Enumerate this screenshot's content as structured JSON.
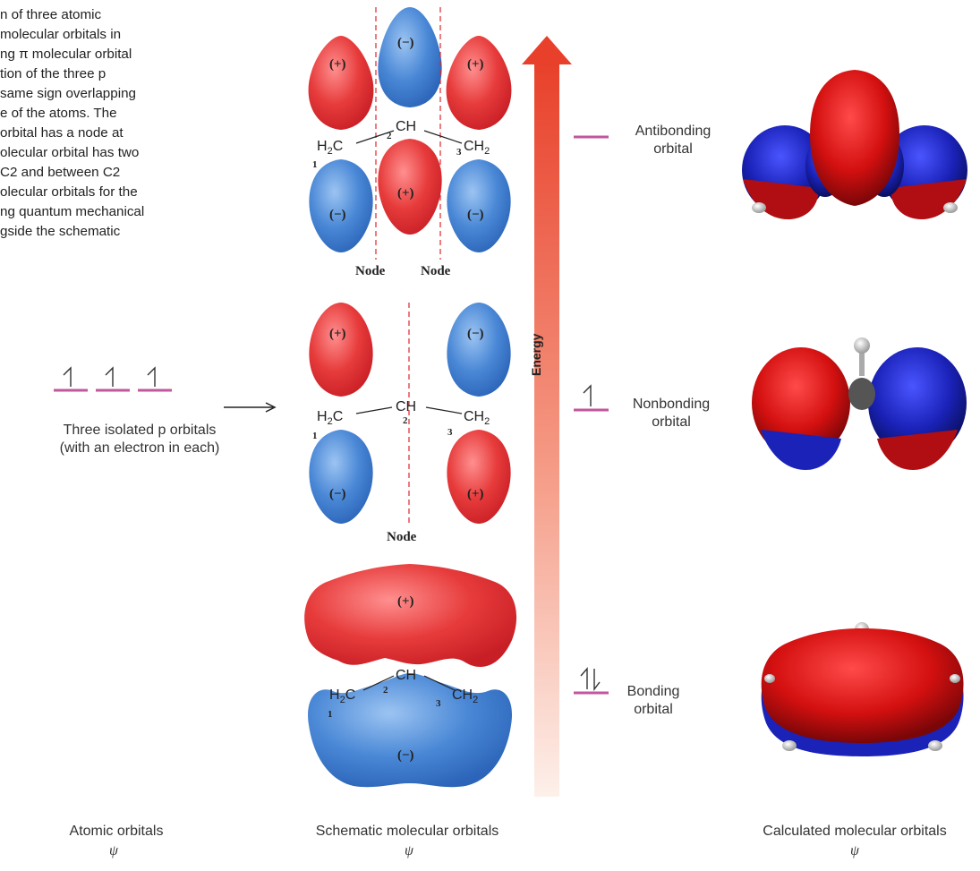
{
  "caption": {
    "lines": [
      "n of three atomic",
      "molecular orbitals in",
      "ng π molecular orbital",
      "tion of the three p",
      "same sign overlapping",
      "e of the atoms. The",
      "orbital has a node at",
      "olecular orbital has two",
      "C2 and between C2",
      "olecular orbitals for the",
      "ng quantum mechanical",
      "gside the schematic"
    ]
  },
  "atomic": {
    "label_line1": "Three isolated p orbitals",
    "label_line2": "(with an electron in each)",
    "column_title": "Atomic orbitals",
    "psi": "ψ"
  },
  "schematic": {
    "column_title": "Schematic molecular orbitals",
    "psi": "ψ",
    "node_label": "Node",
    "plus": "(+)",
    "minus": "(−)",
    "ch": "CH",
    "h2c": "H",
    "c": "C",
    "ch2": "CH",
    "sub2": "2",
    "num1": "1",
    "num2": "2",
    "num3": "3"
  },
  "energy_axis": {
    "label": "Energy"
  },
  "levels": {
    "antibonding": {
      "line1": "Antibonding",
      "line2": "orbital",
      "electrons": 0
    },
    "nonbonding": {
      "line1": "Nonbonding",
      "line2": "orbital",
      "electrons": 1
    },
    "bonding": {
      "line1": "Bonding",
      "line2": "orbital",
      "electrons": 2
    }
  },
  "calculated": {
    "column_title": "Calculated molecular orbitals",
    "psi": "ψ"
  },
  "colors": {
    "red": "#e83a3a",
    "blue": "#3f7fd0",
    "level_line": "#c1579c",
    "node_line": "#e0242c",
    "arrow_top": "#e8402a",
    "arrow_bottom": "#fbe4dc"
  }
}
